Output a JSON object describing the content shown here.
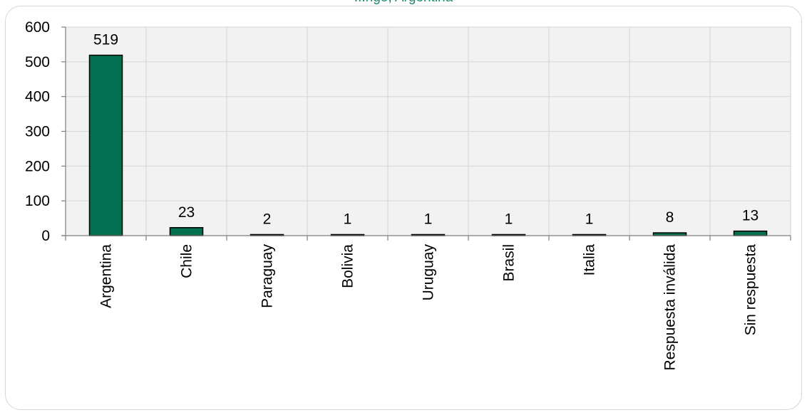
{
  "chart_data": {
    "type": "bar",
    "title": "...ngo, Argentina",
    "categories": [
      "Argentina",
      "Chile",
      "Paraguay",
      "Bolivia",
      "Uruguay",
      "Brasil",
      "Italia",
      "Respuesta inválida",
      "Sin respuesta"
    ],
    "values": [
      519,
      23,
      2,
      1,
      1,
      1,
      1,
      8,
      13
    ],
    "data_labels": [
      "519",
      "23",
      "2",
      "1",
      "1",
      "1",
      "1",
      "8",
      "13"
    ],
    "ylim": [
      0,
      600
    ],
    "yticks": [
      0,
      100,
      200,
      300,
      400,
      500,
      600
    ],
    "ytick_labels": [
      "0",
      "100",
      "200",
      "300",
      "400",
      "500",
      "600"
    ],
    "grid": true,
    "legend": "none",
    "colors": {
      "bar": "#007050",
      "bar_border": "#000000",
      "plot_background": "#f2f2f2",
      "grid": "#d9d9d9",
      "title": "#1a8a72"
    }
  }
}
